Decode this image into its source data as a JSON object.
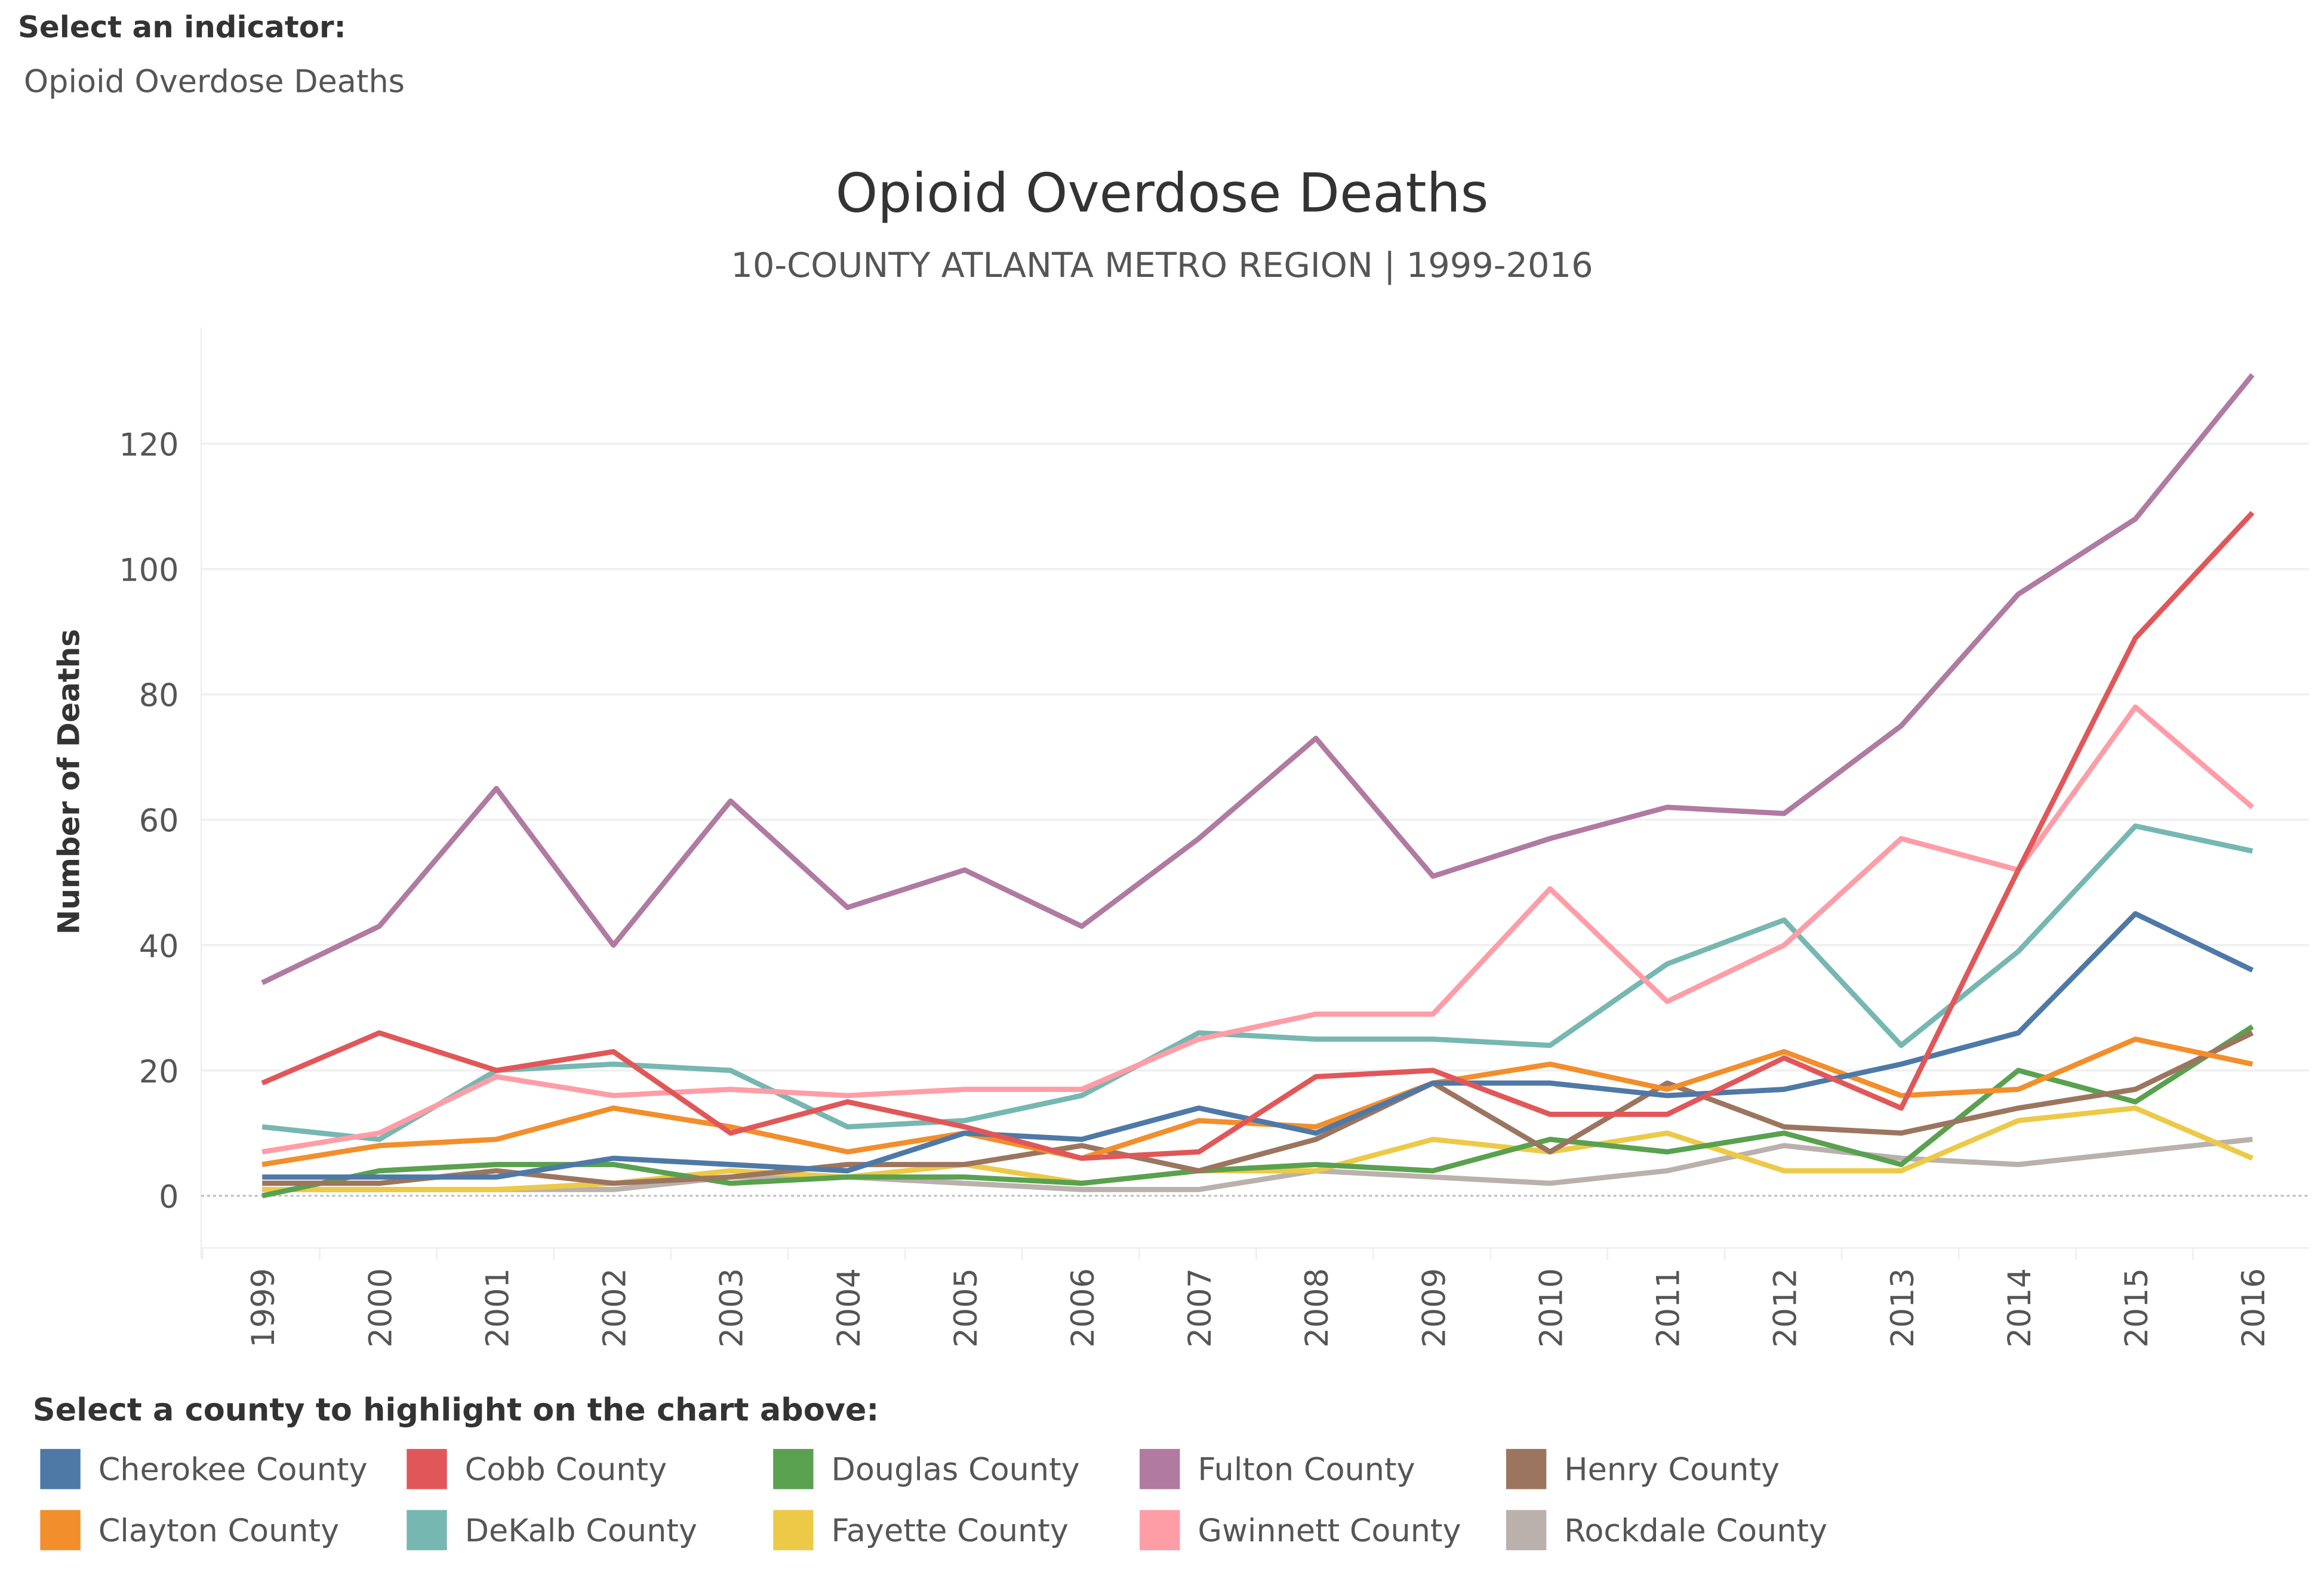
{
  "indicator": {
    "label": "Select an indicator:",
    "value": "Opioid Overdose Deaths"
  },
  "legend_title": "Select  a county to highlight on the chart above:",
  "chart_data": {
    "type": "line",
    "title": "Opioid Overdose Deaths",
    "subtitle": "10-COUNTY ATLANTA METRO REGION | 1999-2016",
    "xlabel": "",
    "ylabel": "Number of Deaths",
    "ylim": [
      -8,
      138
    ],
    "yticks": [
      "0",
      "20",
      "40",
      "60",
      "80",
      "100",
      "120"
    ],
    "x": [
      "1999",
      "2000",
      "2001",
      "2002",
      "2003",
      "2004",
      "2005",
      "2006",
      "2007",
      "2008",
      "2009",
      "2010",
      "2011",
      "2012",
      "2013",
      "2014",
      "2015",
      "2016"
    ],
    "grid": true,
    "legend_position": "bottom",
    "series": [
      {
        "name": "Cherokee County",
        "color": "#4e79a7",
        "values": [
          3,
          3,
          3,
          6,
          5,
          4,
          10,
          9,
          14,
          10,
          18,
          18,
          16,
          17,
          21,
          26,
          45,
          36
        ]
      },
      {
        "name": "Cobb County",
        "color": "#e15759",
        "values": [
          18,
          26,
          20,
          23,
          10,
          15,
          11,
          6,
          7,
          19,
          20,
          13,
          13,
          22,
          14,
          52,
          89,
          109
        ]
      },
      {
        "name": "Douglas County",
        "color": "#59a14f",
        "values": [
          0,
          4,
          5,
          5,
          2,
          3,
          3,
          2,
          4,
          5,
          4,
          9,
          7,
          10,
          5,
          20,
          15,
          27
        ]
      },
      {
        "name": "Fulton County",
        "color": "#b07aa1",
        "values": [
          34,
          43,
          65,
          40,
          63,
          46,
          52,
          43,
          57,
          73,
          51,
          57,
          62,
          61,
          75,
          96,
          108,
          131
        ]
      },
      {
        "name": "Henry County",
        "color": "#9c755f",
        "values": [
          2,
          2,
          4,
          2,
          3,
          5,
          5,
          8,
          4,
          9,
          18,
          7,
          18,
          11,
          10,
          14,
          17,
          26
        ]
      },
      {
        "name": "Clayton County",
        "color": "#f28e2b",
        "values": [
          5,
          8,
          9,
          14,
          11,
          7,
          10,
          6,
          12,
          11,
          18,
          21,
          17,
          23,
          16,
          17,
          25,
          21
        ]
      },
      {
        "name": "DeKalb County",
        "color": "#76b7b2",
        "values": [
          11,
          9,
          20,
          21,
          20,
          11,
          12,
          16,
          26,
          25,
          25,
          24,
          37,
          44,
          24,
          39,
          59,
          55
        ]
      },
      {
        "name": "Fayette County",
        "color": "#edc948",
        "values": [
          1,
          1,
          1,
          2,
          4,
          3,
          5,
          2,
          4,
          4,
          9,
          7,
          10,
          4,
          4,
          12,
          14,
          6
        ]
      },
      {
        "name": "Gwinnett County",
        "color": "#ff9da7",
        "values": [
          7,
          10,
          19,
          16,
          17,
          16,
          17,
          17,
          25,
          29,
          29,
          49,
          31,
          40,
          57,
          52,
          78,
          62
        ]
      },
      {
        "name": "Rockdale County",
        "color": "#bab0ac",
        "values": [
          1,
          1,
          1,
          1,
          3,
          3,
          2,
          1,
          1,
          4,
          3,
          2,
          4,
          8,
          6,
          5,
          7,
          9
        ]
      }
    ]
  }
}
